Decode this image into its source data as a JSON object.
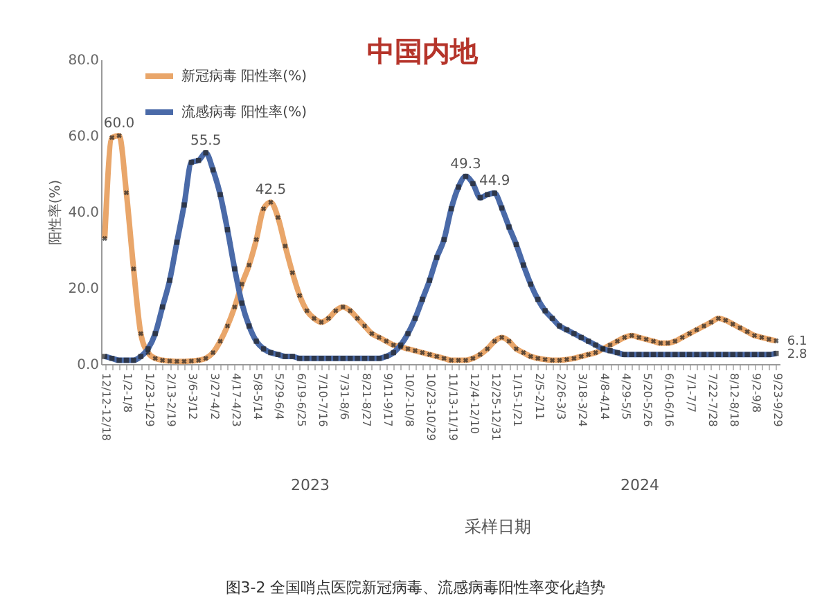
{
  "chart_data": {
    "type": "line",
    "title": "中国内地",
    "xlabel": "采样日期",
    "ylabel": "阳性率(%)",
    "annotations": [
      "2023",
      "2024",
      "图3-2 全国哨点医院新冠病毒、流感病毒阳性率变化趋势"
    ],
    "categories": [
      "12/12-12/18",
      null,
      null,
      "1/2-1/8",
      null,
      null,
      "1/23-1/29",
      null,
      null,
      "2/13-2/19",
      null,
      null,
      "3/6-3/12",
      null,
      null,
      "3/27-4/2",
      null,
      null,
      "4/17-4/23",
      null,
      null,
      "5/8-5/14",
      null,
      null,
      "5/29-6/4",
      null,
      null,
      "6/19-6/25",
      null,
      null,
      "7/10-7/16",
      null,
      null,
      "7/31-8/6",
      null,
      null,
      "8/21-8/27",
      null,
      null,
      "9/11-9/17",
      null,
      null,
      "10/2-10/8",
      null,
      null,
      "10/23-10/29",
      null,
      null,
      "11/13-11/19",
      null,
      null,
      "12/4-12/10",
      null,
      null,
      "12/25-12/31",
      null,
      null,
      "1/15-1/21",
      null,
      null,
      "2/5-2/11",
      null,
      null,
      "2/26-3/3",
      null,
      null,
      "3/18-3/24",
      null,
      null,
      "4/8-4/14",
      null,
      null,
      "4/29-5/5",
      null,
      null,
      "5/20-5/26",
      null,
      null,
      "6/10-6/16",
      null,
      null,
      "7/1-7/7",
      null,
      null,
      "7/22-7/28",
      null,
      null,
      "8/12-8/18",
      null,
      null,
      "9/2-9/8",
      null,
      null,
      "9/23-9/29"
    ],
    "series": [
      {
        "name": "新冠病毒 阳性率(%)",
        "color": "#e9a66a",
        "marker": "cross",
        "values": [
          33,
          59.5,
          60.0,
          45,
          25,
          8,
          3,
          1.5,
          1,
          0.8,
          0.7,
          0.7,
          0.8,
          1,
          1.5,
          3,
          6,
          10,
          15,
          21,
          26,
          32.7,
          40.8,
          42.5,
          38.5,
          31,
          24,
          18,
          14,
          12,
          11,
          12,
          14,
          15,
          14,
          12,
          10,
          8,
          7,
          6,
          5,
          4.5,
          4,
          3.5,
          3,
          2.5,
          2,
          1.5,
          1,
          1,
          1,
          1.5,
          2.5,
          4,
          6,
          7,
          6,
          4,
          3,
          2,
          1.5,
          1.2,
          1,
          1,
          1.2,
          1.5,
          2,
          2.5,
          3,
          4,
          5,
          6,
          7,
          7.5,
          7,
          6.5,
          6,
          5.5,
          5.5,
          6,
          7,
          8,
          9,
          10,
          11,
          12,
          11.5,
          10.5,
          9.5,
          8.5,
          7.5,
          7,
          6.5,
          6.1
        ],
        "value_labels": [
          null,
          null,
          "60.0",
          null,
          null,
          null,
          null,
          null,
          null,
          null,
          null,
          null,
          null,
          null,
          null,
          null,
          null,
          null,
          null,
          null,
          null,
          null,
          null,
          "42.5",
          null,
          null,
          null,
          null,
          null,
          null,
          null,
          null,
          null,
          null,
          null,
          null,
          null,
          null,
          null,
          null,
          null,
          null,
          null,
          null,
          null,
          null,
          null,
          null,
          null,
          null,
          null,
          null,
          null,
          null,
          null,
          null,
          null,
          null,
          null,
          null,
          null,
          null,
          null,
          null,
          null,
          null,
          null,
          null,
          null,
          null,
          null,
          null,
          null,
          null,
          null,
          null,
          null,
          null,
          null,
          null,
          null,
          null,
          null,
          null,
          null,
          null,
          null,
          null,
          null,
          null,
          null,
          null,
          null,
          "6.1"
        ]
      },
      {
        "name": "流感病毒 阳性率(%)",
        "color": "#4a6aa8",
        "marker": "square",
        "values": [
          2,
          1.5,
          1,
          1,
          1,
          2,
          4,
          8,
          15,
          22,
          32,
          41.8,
          53,
          53.5,
          55.5,
          51,
          44.5,
          35.3,
          25,
          16,
          10,
          6,
          4,
          3,
          2.5,
          2,
          2,
          1.5,
          1.5,
          1.5,
          1.5,
          1.5,
          1.5,
          1.5,
          1.5,
          1.5,
          1.5,
          1.5,
          1.5,
          2,
          3,
          5,
          8,
          12,
          17,
          22,
          28,
          32.7,
          40.8,
          46.5,
          49.3,
          47.4,
          43.7,
          44.5,
          44.9,
          41,
          36,
          31.4,
          26,
          21,
          17,
          14,
          12,
          10,
          9,
          8,
          7,
          6,
          5,
          4,
          3.5,
          3,
          2.5,
          2.5,
          2.5,
          2.5,
          2.5,
          2.5,
          2.5,
          2.5,
          2.5,
          2.5,
          2.5,
          2.5,
          2.5,
          2.5,
          2.5,
          2.5,
          2.5,
          2.5,
          2.5,
          2.5,
          2.5,
          2.8
        ],
        "value_labels": [
          null,
          null,
          null,
          null,
          null,
          null,
          null,
          null,
          null,
          null,
          null,
          null,
          null,
          null,
          "55.5",
          null,
          null,
          null,
          null,
          null,
          null,
          null,
          null,
          null,
          null,
          null,
          null,
          null,
          null,
          null,
          null,
          null,
          null,
          null,
          null,
          null,
          null,
          null,
          null,
          null,
          null,
          null,
          null,
          null,
          null,
          null,
          null,
          null,
          null,
          null,
          "49.3",
          null,
          null,
          null,
          "44.9",
          null,
          null,
          null,
          null,
          null,
          null,
          null,
          null,
          null,
          null,
          null,
          null,
          null,
          null,
          null,
          null,
          null,
          null,
          null,
          null,
          null,
          null,
          null,
          null,
          null,
          null,
          null,
          null,
          null,
          null,
          null,
          null,
          null,
          null,
          null,
          null,
          null,
          null,
          "2.8"
        ]
      }
    ],
    "ylim": [
      0,
      80
    ],
    "yticks": [
      {
        "value": 0,
        "label": "0.0"
      },
      {
        "value": 20,
        "label": "20.0"
      },
      {
        "value": 40,
        "label": "40.0"
      },
      {
        "value": 60,
        "label": "60.0"
      },
      {
        "value": 80,
        "label": "80.0"
      }
    ],
    "legend": "top left"
  }
}
